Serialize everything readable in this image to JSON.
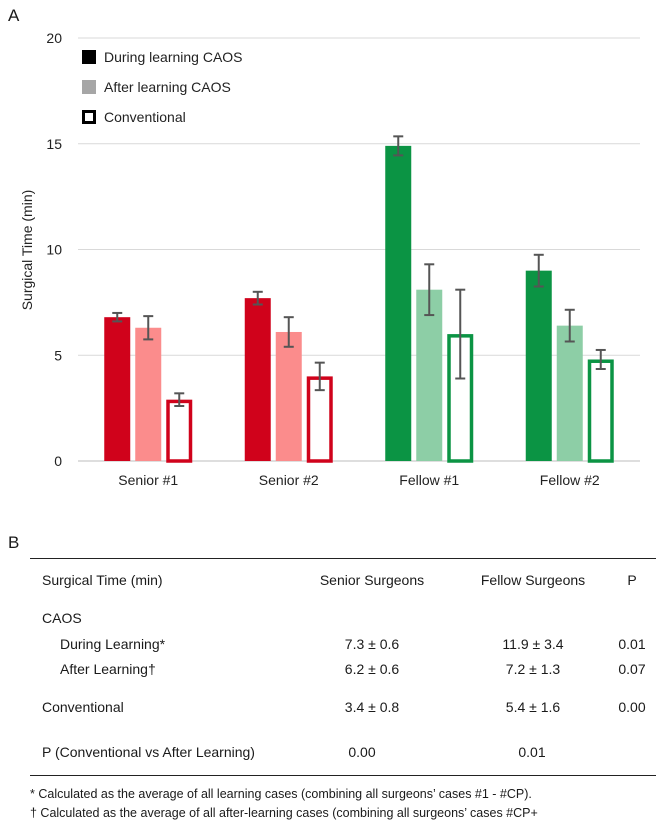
{
  "panel_a_label": "A",
  "panel_b_label": "B",
  "chart_data": {
    "type": "bar",
    "title": "",
    "xlabel": "",
    "ylabel": "Surgical Time (min)",
    "ylim": [
      0,
      20
    ],
    "yticks": [
      "0",
      "5",
      "10",
      "15",
      "20"
    ],
    "grid": true,
    "legend_position": "top-left",
    "categories": [
      "Senior #1",
      "Senior #2",
      "Fellow #1",
      "Fellow #2"
    ],
    "series": [
      {
        "name": "During learning CAOS",
        "values": [
          6.8,
          7.7,
          14.9,
          9.0
        ],
        "errors": [
          0.2,
          0.3,
          0.45,
          0.75
        ]
      },
      {
        "name": "After learning CAOS",
        "values": [
          6.3,
          6.1,
          8.1,
          6.4
        ],
        "errors": [
          0.55,
          0.7,
          1.2,
          0.75
        ]
      },
      {
        "name": "Conventional",
        "values": [
          2.9,
          4.0,
          6.0,
          4.8
        ],
        "errors": [
          0.3,
          0.65,
          2.1,
          0.45
        ]
      }
    ],
    "colors": {
      "senior": [
        "#d0021b",
        "#fb8c8c",
        "#d0021b"
      ],
      "fellow": [
        "#0b9444",
        "#8dcea6",
        "#0b9444"
      ],
      "legend": [
        "#000000",
        "#a6a6a6",
        "#000000"
      ],
      "error_bar": "#555555",
      "grid": "#d9d9d9"
    }
  },
  "table": {
    "headers": [
      "Surgical Time (min)",
      "Senior Surgeons",
      "Fellow Surgeons",
      "P"
    ],
    "rows": [
      {
        "label": "CAOS",
        "senior": "",
        "fellow": "",
        "p": ""
      },
      {
        "label": "During Learning*",
        "senior": "7.3 ± 0.6",
        "fellow": "11.9 ± 3.4",
        "p": "0.01"
      },
      {
        "label": "After Learning†",
        "senior": "6.2 ± 0.6",
        "fellow": "7.2 ± 1.3",
        "p": "0.07"
      },
      {
        "label": "Conventional",
        "senior": "3.4 ± 0.8",
        "fellow": "5.4 ± 1.6",
        "p": "0.00"
      },
      {
        "label": "P (Conventional vs After Learning)",
        "senior": "0.00",
        "fellow": "0.01",
        "p": ""
      }
    ]
  },
  "footnotes": [
    "* Calculated as the average of all learning cases (combining all surgeons’ cases #1 - #CP).",
    "† Calculated as the average of all after-learning cases (combining all surgeons’ cases #CP+"
  ]
}
